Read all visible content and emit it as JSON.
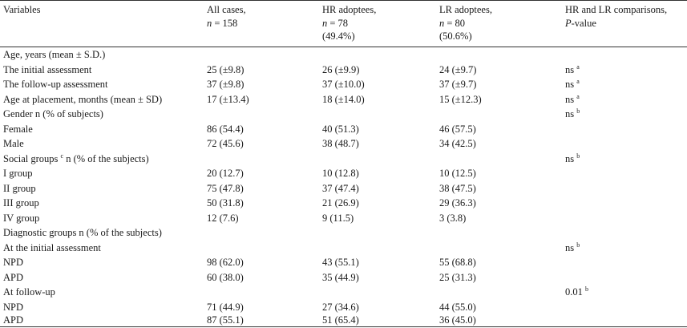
{
  "header": {
    "variables": "Variables",
    "all_cases": {
      "line1": "All cases,",
      "n_label": "n",
      "n_value": " = 158"
    },
    "hr": {
      "line1": "HR adoptees,",
      "n_label": "n",
      "n_value": " = 78",
      "pct": "(49.4%)"
    },
    "lr": {
      "line1": "LR adoptees,",
      "n_label": "n",
      "n_value": " = 80",
      "pct": "(50.6%)"
    },
    "comparison": {
      "line1": "HR and LR comparisons,",
      "p_label": "P",
      "p_rest": "-value"
    }
  },
  "rows": [
    {
      "label": "Age, years (mean ± S.D.)",
      "all": "",
      "hr": "",
      "lr": "",
      "cmp": "",
      "sup": "",
      "label_sup": "",
      "label_rest": ""
    },
    {
      "label": "The initial assessment",
      "all": "25 (±9.8)",
      "hr": "26 (±9.9)",
      "lr": "24 (±9.7)",
      "cmp": "ns",
      "sup": "a",
      "label_sup": "",
      "label_rest": ""
    },
    {
      "label": "The follow-up assessment",
      "all": "37 (±9.8)",
      "hr": "37 (±10.0)",
      "lr": "37 (±9.7)",
      "cmp": "ns",
      "sup": "a",
      "label_sup": "",
      "label_rest": ""
    },
    {
      "label": "Age at placement, months (mean ± SD)",
      "all": "17 (±13.4)",
      "hr": "18 (±14.0)",
      "lr": "15 (±12.3)",
      "cmp": "ns",
      "sup": "a",
      "label_sup": "",
      "label_rest": ""
    },
    {
      "label": "Gender n (% of subjects)",
      "all": "",
      "hr": "",
      "lr": "",
      "cmp": "ns",
      "sup": "b",
      "label_sup": "",
      "label_rest": ""
    },
    {
      "label": "Female",
      "all": "86 (54.4)",
      "hr": "40 (51.3)",
      "lr": "46 (57.5)",
      "cmp": "",
      "sup": "",
      "label_sup": "",
      "label_rest": ""
    },
    {
      "label": "Male",
      "all": "72 (45.6)",
      "hr": "38 (48.7)",
      "lr": "34 (42.5)",
      "cmp": "",
      "sup": "",
      "label_sup": "",
      "label_rest": ""
    },
    {
      "label": "Social groups",
      "all": "",
      "hr": "",
      "lr": "",
      "cmp": "ns",
      "sup": "b",
      "label_sup": "c",
      "label_rest": "n (% of the subjects)"
    },
    {
      "label": "I group",
      "all": "20 (12.7)",
      "hr": "10 (12.8)",
      "lr": "10 (12.5)",
      "cmp": "",
      "sup": "",
      "label_sup": "",
      "label_rest": ""
    },
    {
      "label": "II group",
      "all": "75 (47.8)",
      "hr": "37 (47.4)",
      "lr": "38 (47.5)",
      "cmp": "",
      "sup": "",
      "label_sup": "",
      "label_rest": ""
    },
    {
      "label": "III group",
      "all": "50 (31.8)",
      "hr": "21 (26.9)",
      "lr": "29 (36.3)",
      "cmp": "",
      "sup": "",
      "label_sup": "",
      "label_rest": ""
    },
    {
      "label": "IV group",
      "all": "12 (7.6)",
      "hr": "9 (11.5)",
      "lr": "3 (3.8)",
      "cmp": "",
      "sup": "",
      "label_sup": "",
      "label_rest": ""
    },
    {
      "label": "Diagnostic groups n (% of the subjects)",
      "all": "",
      "hr": "",
      "lr": "",
      "cmp": "",
      "sup": "",
      "label_sup": "",
      "label_rest": ""
    },
    {
      "label": "At the initial assessment",
      "all": "",
      "hr": "",
      "lr": "",
      "cmp": "ns",
      "sup": "b",
      "label_sup": "",
      "label_rest": ""
    },
    {
      "label": "NPD",
      "all": "98 (62.0)",
      "hr": "43 (55.1)",
      "lr": "55 (68.8)",
      "cmp": "",
      "sup": "",
      "label_sup": "",
      "label_rest": ""
    },
    {
      "label": "APD",
      "all": "60 (38.0)",
      "hr": "35 (44.9)",
      "lr": "25 (31.3)",
      "cmp": "",
      "sup": "",
      "label_sup": "",
      "label_rest": ""
    },
    {
      "label": "At follow-up",
      "all": "",
      "hr": "",
      "lr": "",
      "cmp": "0.01",
      "sup": "b",
      "label_sup": "",
      "label_rest": ""
    },
    {
      "label": "NPD",
      "all": "71 (44.9)",
      "hr": "27 (34.6)",
      "lr": "44 (55.0)",
      "cmp": "",
      "sup": "",
      "label_sup": "",
      "label_rest": ""
    },
    {
      "label": "APD",
      "all": "87 (55.1)",
      "hr": "51 (65.4)",
      "lr": "36 (45.0)",
      "cmp": "",
      "sup": "",
      "label_sup": "",
      "label_rest": ""
    }
  ]
}
